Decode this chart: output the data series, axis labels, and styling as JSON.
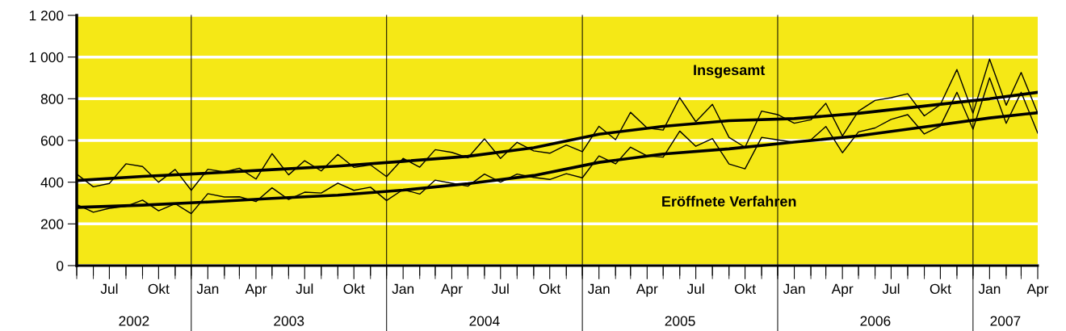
{
  "chart_data": {
    "type": "line",
    "x": [
      "2002-05",
      "2002-06",
      "2002-07",
      "2002-08",
      "2002-09",
      "2002-10",
      "2002-11",
      "2002-12",
      "2003-01",
      "2003-02",
      "2003-03",
      "2003-04",
      "2003-05",
      "2003-06",
      "2003-07",
      "2003-08",
      "2003-09",
      "2003-10",
      "2003-11",
      "2003-12",
      "2004-01",
      "2004-02",
      "2004-03",
      "2004-04",
      "2004-05",
      "2004-06",
      "2004-07",
      "2004-08",
      "2004-09",
      "2004-10",
      "2004-11",
      "2004-12",
      "2005-01",
      "2005-02",
      "2005-03",
      "2005-04",
      "2005-05",
      "2005-06",
      "2005-07",
      "2005-08",
      "2005-09",
      "2005-10",
      "2005-11",
      "2005-12",
      "2006-01",
      "2006-02",
      "2006-03",
      "2006-04",
      "2006-05",
      "2006-06",
      "2006-07",
      "2006-08",
      "2006-09",
      "2006-10",
      "2006-11",
      "2006-12",
      "2007-01",
      "2007-02",
      "2007-03",
      "2007-04"
    ],
    "series": [
      {
        "color": "#000000",
        "values": [
          439,
          378,
          394,
          488,
          475,
          400,
          461,
          361,
          462,
          449,
          467,
          415,
          537,
          435,
          503,
          454,
          533,
          471,
          483,
          427,
          514,
          472,
          556,
          543,
          517,
          608,
          514,
          591,
          550,
          539,
          578,
          546,
          668,
          604,
          735,
          660,
          650,
          805,
          690,
          773,
          615,
          567,
          741,
          724,
          683,
          699,
          778,
          622,
          741,
          792,
          805,
          824,
          718,
          772,
          940,
          731,
          990,
          769,
          926,
          730
        ]
      },
      {
        "color": "#000000",
        "values": [
          293,
          256,
          275,
          284,
          314,
          263,
          297,
          249,
          345,
          329,
          330,
          307,
          373,
          317,
          352,
          348,
          395,
          361,
          376,
          312,
          365,
          343,
          410,
          395,
          381,
          439,
          400,
          439,
          423,
          413,
          441,
          421,
          526,
          488,
          568,
          526,
          520,
          645,
          572,
          609,
          487,
          464,
          615,
          603,
          592,
          603,
          667,
          541,
          641,
          660,
          701,
          724,
          631,
          669,
          831,
          654,
          900,
          682,
          831,
          635
        ]
      },
      {
        "name": "Insgesamt",
        "color": "#000000",
        "x": [
          "2002-05",
          "2002-09",
          "2003-01",
          "2003-05",
          "2003-09",
          "2004-01",
          "2004-05",
          "2004-09",
          "2005-01",
          "2005-05",
          "2005-09",
          "2006-01",
          "2006-05",
          "2006-09",
          "2007-01",
          "2007-04"
        ],
        "values": [
          408,
          428,
          443,
          460,
          477,
          500,
          524,
          565,
          630,
          668,
          695,
          705,
          730,
          765,
          800,
          831
        ]
      },
      {
        "name": "Eröffnete Verfahren",
        "color": "#000000",
        "x": [
          "2002-05",
          "2002-09",
          "2003-01",
          "2003-05",
          "2003-09",
          "2004-01",
          "2004-05",
          "2004-09",
          "2005-01",
          "2005-05",
          "2005-09",
          "2006-01",
          "2006-05",
          "2006-09",
          "2007-01",
          "2007-04"
        ],
        "values": [
          279,
          290,
          305,
          322,
          338,
          362,
          393,
          432,
          495,
          535,
          560,
          592,
          622,
          665,
          708,
          733
        ]
      }
    ],
    "xlim": [
      "2002-05",
      "2007-04"
    ],
    "xticks": [
      {
        "value": "2002-05",
        "label": null
      },
      {
        "value": "2002-06",
        "label": null
      },
      {
        "value": "2002-07",
        "label": "Jul"
      },
      {
        "value": "2002-08",
        "label": null
      },
      {
        "value": "2002-09",
        "label": null
      },
      {
        "value": "2002-10",
        "label": "Okt"
      },
      {
        "value": "2002-11",
        "label": null
      },
      {
        "value": "2002-12",
        "label": null
      },
      {
        "value": "2003-01",
        "label": "Jan"
      },
      {
        "value": "2003-02",
        "label": null
      },
      {
        "value": "2003-03",
        "label": null
      },
      {
        "value": "2003-04",
        "label": "Apr"
      },
      {
        "value": "2003-05",
        "label": null
      },
      {
        "value": "2003-06",
        "label": null
      },
      {
        "value": "2003-07",
        "label": "Jul"
      },
      {
        "value": "2003-08",
        "label": null
      },
      {
        "value": "2003-09",
        "label": null
      },
      {
        "value": "2003-10",
        "label": "Okt"
      },
      {
        "value": "2003-11",
        "label": null
      },
      {
        "value": "2003-12",
        "label": null
      },
      {
        "value": "2004-01",
        "label": "Jan"
      },
      {
        "value": "2004-02",
        "label": null
      },
      {
        "value": "2004-03",
        "label": null
      },
      {
        "value": "2004-04",
        "label": "Apr"
      },
      {
        "value": "2004-05",
        "label": null
      },
      {
        "value": "2004-06",
        "label": null
      },
      {
        "value": "2004-07",
        "label": "Jul"
      },
      {
        "value": "2004-08",
        "label": null
      },
      {
        "value": "2004-09",
        "label": null
      },
      {
        "value": "2004-10",
        "label": "Okt"
      },
      {
        "value": "2004-11",
        "label": null
      },
      {
        "value": "2004-12",
        "label": null
      },
      {
        "value": "2005-01",
        "label": "Jan"
      },
      {
        "value": "2005-02",
        "label": null
      },
      {
        "value": "2005-03",
        "label": null
      },
      {
        "value": "2005-04",
        "label": "Apr"
      },
      {
        "value": "2005-05",
        "label": null
      },
      {
        "value": "2005-06",
        "label": null
      },
      {
        "value": "2005-07",
        "label": "Jul"
      },
      {
        "value": "2005-08",
        "label": null
      },
      {
        "value": "2005-09",
        "label": null
      },
      {
        "value": "2005-10",
        "label": "Okt"
      },
      {
        "value": "2005-11",
        "label": null
      },
      {
        "value": "2005-12",
        "label": null
      },
      {
        "value": "2006-01",
        "label": "Jan"
      },
      {
        "value": "2006-02",
        "label": null
      },
      {
        "value": "2006-03",
        "label": null
      },
      {
        "value": "2006-04",
        "label": "Apr"
      },
      {
        "value": "2006-05",
        "label": null
      },
      {
        "value": "2006-06",
        "label": null
      },
      {
        "value": "2006-07",
        "label": "Jul"
      },
      {
        "value": "2006-08",
        "label": null
      },
      {
        "value": "2006-09",
        "label": null
      },
      {
        "value": "2006-10",
        "label": "Okt"
      },
      {
        "value": "2006-11",
        "label": null
      },
      {
        "value": "2006-12",
        "label": null
      },
      {
        "value": "2007-01",
        "label": "Jan"
      },
      {
        "value": "2007-02",
        "label": null
      },
      {
        "value": "2007-03",
        "label": null
      },
      {
        "value": "2007-04",
        "label": "Apr"
      }
    ],
    "ylim": [
      0,
      1200
    ],
    "yticks": [
      0,
      200,
      400,
      600,
      800,
      {
        "value": 1000,
        "label": "1 000"
      },
      {
        "value": 1200,
        "label": "1 200"
      }
    ],
    "ref_lines": [
      {
        "axis": "x",
        "value": "2002-12",
        "color": "#000000"
      },
      {
        "axis": "x",
        "value": "2003-12",
        "color": "#000000"
      },
      {
        "axis": "x",
        "value": "2004-12",
        "color": "#000000"
      },
      {
        "axis": "x",
        "value": "2005-12",
        "color": "#000000"
      },
      {
        "axis": "x",
        "value": "2006-12",
        "color": "#000000"
      }
    ],
    "annotations": [
      "2002",
      "2003",
      "2004",
      "2005",
      "2006",
      "2007"
    ],
    "grid": "y",
    "legend": false,
    "marker": "none",
    "line_style": "solid"
  }
}
